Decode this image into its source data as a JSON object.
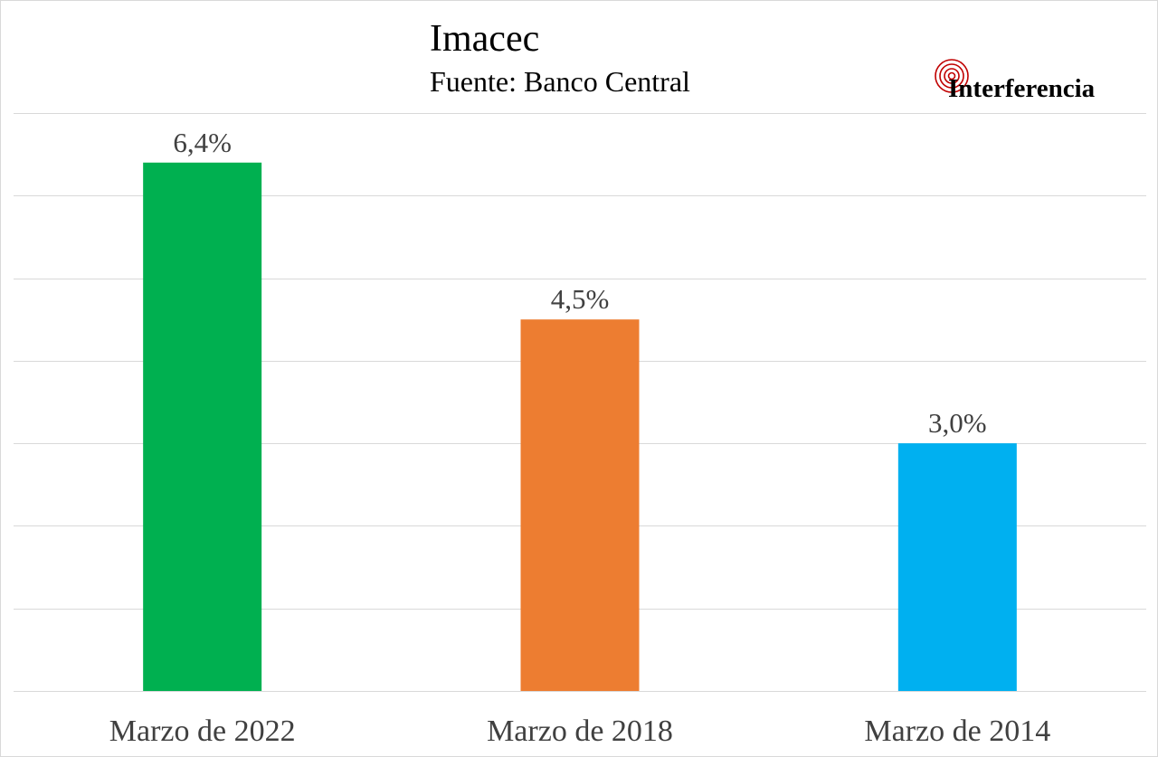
{
  "chart_data": {
    "type": "bar",
    "title": "Imacec",
    "subtitle": "Fuente: Banco Central",
    "categories": [
      "Marzo de 2022",
      "Marzo de 2018",
      "Marzo de 2014"
    ],
    "values": [
      6.4,
      4.5,
      3.0
    ],
    "data_labels": [
      "6,4%",
      "4,5%",
      "3,0%"
    ],
    "colors": [
      "#00b050",
      "#ed7d31",
      "#00b0f0"
    ],
    "ylim": [
      0,
      7
    ],
    "grid": true,
    "legend": "none",
    "xlabel": "",
    "ylabel": ""
  },
  "brand": {
    "logo_text": "Interferencia",
    "logo_icon": "concentric-circles-icon",
    "logo_color": "#c00000"
  }
}
